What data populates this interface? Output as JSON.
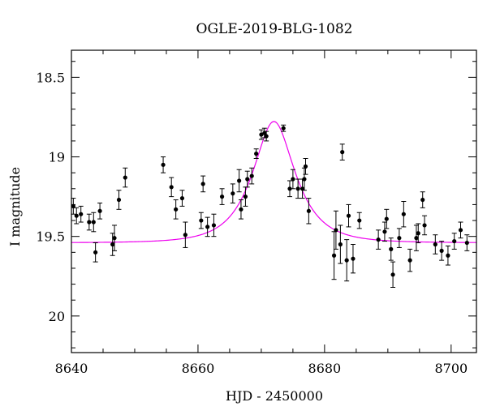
{
  "chart_data": {
    "type": "scatter",
    "title": "OGLE-2019-BLG-1082",
    "xlabel": "HJD - 2450000",
    "ylabel": "I magnitude",
    "xlim": [
      8640,
      8704
    ],
    "ylim": [
      20.23,
      18.33
    ],
    "y_inverted": true,
    "x_ticks": [
      8640,
      8660,
      8680,
      8700
    ],
    "x_tick_labels": [
      "8640",
      "8660",
      "8680",
      "8700"
    ],
    "y_ticks": [
      18.5,
      19,
      19.5,
      20
    ],
    "y_tick_labels": [
      "18.5",
      "19",
      "19.5",
      "20"
    ],
    "grid": false,
    "colors": {
      "points": "#000000",
      "model": "#ee00ee",
      "frame": "#000000"
    },
    "series": [
      {
        "type": "scatter",
        "x": [
          8640.3,
          8640.8,
          8641.5,
          8642.8,
          8643.5,
          8643.8,
          8644.5,
          8646.5,
          8646.8,
          8647.5,
          8648.5,
          8654.5,
          8655.8,
          8656.5,
          8657.5,
          8658.0,
          8660.5,
          8660.8,
          8661.5,
          8662.5,
          8663.8,
          8665.5,
          8666.5,
          8666.8,
          8667.5,
          8667.8,
          8668.5,
          8669.2,
          8670.0,
          8670.5,
          8670.8,
          8673.5,
          8674.5,
          8675.0,
          8675.8,
          8676.5,
          8676.8,
          8677.0,
          8677.5,
          8681.5,
          8681.8,
          8682.5,
          8682.8,
          8683.5,
          8683.8,
          8684.5,
          8685.5,
          8688.5,
          8689.5,
          8689.8,
          8690.5,
          8690.8,
          8691.8,
          8692.5,
          8693.5,
          8694.5,
          8694.8,
          8695.5,
          8695.8,
          8697.5,
          8698.5,
          8699.5,
          8700.5,
          8701.5,
          8702.5
        ],
        "y": [
          19.31,
          19.37,
          19.36,
          19.41,
          19.41,
          19.6,
          19.34,
          19.55,
          19.51,
          19.27,
          19.13,
          19.05,
          19.19,
          19.33,
          19.26,
          19.49,
          19.4,
          19.17,
          19.44,
          19.43,
          19.25,
          19.23,
          19.15,
          19.33,
          19.25,
          19.14,
          19.12,
          18.98,
          18.86,
          18.85,
          18.87,
          18.82,
          19.2,
          19.14,
          19.2,
          19.2,
          19.14,
          19.06,
          19.34,
          19.62,
          19.46,
          19.55,
          18.97,
          19.65,
          19.37,
          19.64,
          19.4,
          19.52,
          19.47,
          19.39,
          19.58,
          19.74,
          19.51,
          19.36,
          19.65,
          19.51,
          19.48,
          19.27,
          19.43,
          19.55,
          19.59,
          19.62,
          19.53,
          19.46,
          19.54
        ],
        "err": [
          0.05,
          0.05,
          0.05,
          0.05,
          0.06,
          0.06,
          0.05,
          0.07,
          0.08,
          0.06,
          0.06,
          0.05,
          0.06,
          0.06,
          0.05,
          0.08,
          0.05,
          0.05,
          0.06,
          0.07,
          0.05,
          0.06,
          0.07,
          0.06,
          0.06,
          0.05,
          0.05,
          0.03,
          0.03,
          0.03,
          0.03,
          0.02,
          0.05,
          0.06,
          0.06,
          0.06,
          0.07,
          0.05,
          0.08,
          0.15,
          0.12,
          0.12,
          0.05,
          0.13,
          0.07,
          0.09,
          0.05,
          0.06,
          0.06,
          0.06,
          0.07,
          0.08,
          0.06,
          0.08,
          0.07,
          0.08,
          0.06,
          0.05,
          0.06,
          0.06,
          0.06,
          0.06,
          0.05,
          0.05,
          0.05
        ]
      },
      {
        "type": "line",
        "model": {
          "t0": 8672.0,
          "tE": 5.5,
          "u0": 0.55,
          "base_mag": 19.54
        }
      }
    ]
  }
}
